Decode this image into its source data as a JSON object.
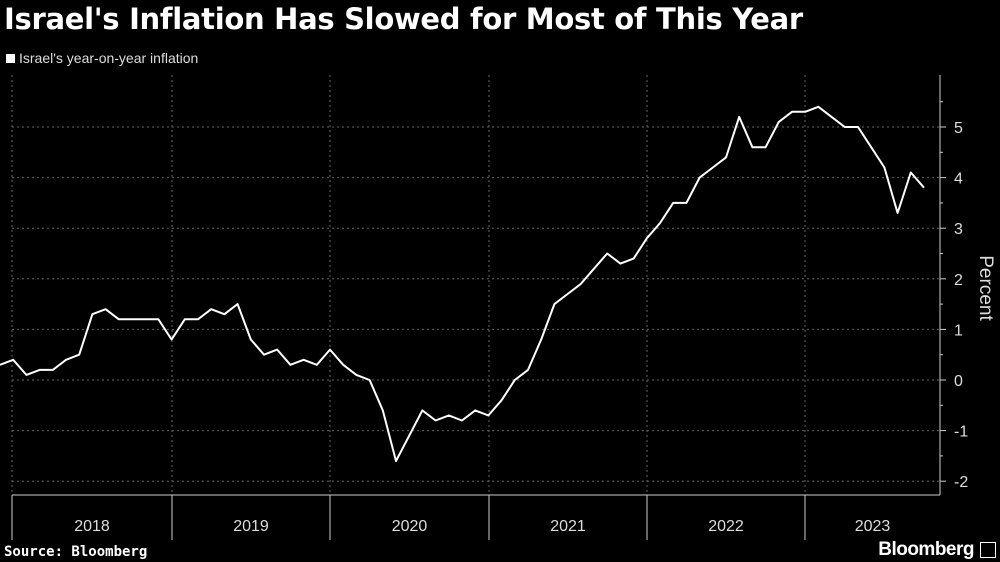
{
  "chart_data": {
    "type": "line",
    "title": "Israel's Inflation Has Slowed for Most of This Year",
    "legend": [
      "Israel's year-on-year inflation"
    ],
    "legend_placement": "top-left",
    "ylabel": "Percent",
    "ylim": [
      -2.2,
      5.9
    ],
    "yticks": [
      -2,
      -1,
      0,
      1,
      2,
      3,
      4,
      5
    ],
    "xtick_labels": [
      "2018",
      "2019",
      "2020",
      "2021",
      "2022",
      "2023"
    ],
    "grid": true,
    "series": [
      {
        "name": "Israel's year-on-year inflation",
        "color": "#ffffff",
        "start": "2017-11",
        "frequency": "monthly",
        "values": [
          0.3,
          0.4,
          0.1,
          0.2,
          0.2,
          0.4,
          0.5,
          1.3,
          1.4,
          1.2,
          1.2,
          1.2,
          1.2,
          0.8,
          1.2,
          1.2,
          1.4,
          1.3,
          1.5,
          0.8,
          0.5,
          0.6,
          0.3,
          0.4,
          0.3,
          0.6,
          0.3,
          0.1,
          0.0,
          -0.6,
          -1.6,
          -1.1,
          -0.6,
          -0.8,
          -0.7,
          -0.8,
          -0.6,
          -0.7,
          -0.4,
          0.0,
          0.2,
          0.8,
          1.5,
          1.7,
          1.9,
          2.2,
          2.5,
          2.3,
          2.4,
          2.8,
          3.1,
          3.5,
          3.5,
          4.0,
          4.2,
          4.4,
          5.2,
          4.6,
          4.6,
          5.1,
          5.3,
          5.3,
          5.4,
          5.2,
          5.0,
          5.0,
          4.6,
          4.2,
          3.3,
          4.1,
          3.8
        ]
      }
    ]
  },
  "source": "Source: Bloomberg",
  "logo": "Bloomberg"
}
